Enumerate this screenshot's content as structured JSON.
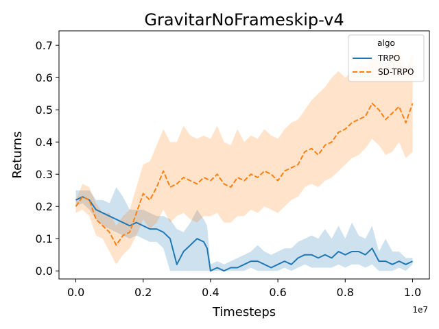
{
  "chart_data": {
    "type": "line",
    "title": "GravitarNoFrameskip-v4",
    "xlabel": "Timesteps",
    "ylabel": "Returns",
    "x_offset_label": "1e7",
    "xlim": [
      -0.05,
      1.05
    ],
    "ylim": [
      -0.025,
      0.745
    ],
    "x_ticks": [
      0.0,
      0.2,
      0.4,
      0.6,
      0.8,
      1.0
    ],
    "x_tick_labels": [
      "0.0",
      "0.2",
      "0.4",
      "0.6",
      "0.8",
      "1.0"
    ],
    "y_ticks": [
      0.0,
      0.1,
      0.2,
      0.3,
      0.4,
      0.5,
      0.6,
      0.7
    ],
    "y_tick_labels": [
      "0.0",
      "0.1",
      "0.2",
      "0.3",
      "0.4",
      "0.5",
      "0.6",
      "0.7"
    ],
    "grid": false,
    "legend": {
      "title": "algo",
      "placement": "top-right"
    },
    "series": [
      {
        "name": "TRPO",
        "color": "#1f77b4",
        "line_style": "solid",
        "band_opacity": 0.22,
        "x": [
          0.0,
          0.02,
          0.04,
          0.06,
          0.08,
          0.1,
          0.12,
          0.14,
          0.16,
          0.18,
          0.2,
          0.22,
          0.24,
          0.26,
          0.28,
          0.3,
          0.32,
          0.34,
          0.36,
          0.38,
          0.39,
          0.4,
          0.42,
          0.44,
          0.46,
          0.48,
          0.5,
          0.52,
          0.54,
          0.56,
          0.58,
          0.6,
          0.62,
          0.64,
          0.66,
          0.68,
          0.7,
          0.72,
          0.74,
          0.76,
          0.78,
          0.8,
          0.82,
          0.84,
          0.86,
          0.88,
          0.9,
          0.92,
          0.94,
          0.96,
          0.98,
          1.0
        ],
        "y": [
          0.22,
          0.23,
          0.22,
          0.19,
          0.18,
          0.17,
          0.16,
          0.15,
          0.14,
          0.15,
          0.14,
          0.13,
          0.13,
          0.12,
          0.1,
          0.02,
          0.06,
          0.08,
          0.1,
          0.09,
          0.07,
          0.0,
          0.01,
          0.0,
          0.01,
          0.01,
          0.02,
          0.03,
          0.03,
          0.02,
          0.01,
          0.02,
          0.03,
          0.02,
          0.04,
          0.05,
          0.05,
          0.04,
          0.05,
          0.04,
          0.06,
          0.05,
          0.06,
          0.06,
          0.05,
          0.07,
          0.03,
          0.03,
          0.02,
          0.03,
          0.02,
          0.03
        ],
        "lower": [
          0.2,
          0.21,
          0.19,
          0.16,
          0.14,
          0.13,
          0.12,
          0.11,
          0.1,
          0.11,
          0.1,
          0.09,
          0.09,
          0.07,
          0.0,
          0.0,
          0.0,
          0.0,
          0.0,
          0.0,
          0.0,
          0.0,
          0.0,
          0.0,
          0.0,
          0.0,
          0.0,
          0.01,
          0.0,
          0.0,
          0.0,
          0.0,
          0.01,
          0.0,
          0.01,
          0.02,
          0.01,
          0.01,
          0.01,
          0.01,
          0.02,
          0.01,
          0.02,
          0.02,
          0.01,
          0.02,
          0.0,
          0.0,
          0.0,
          0.01,
          0.0,
          0.02
        ],
        "upper": [
          0.25,
          0.25,
          0.25,
          0.22,
          0.22,
          0.21,
          0.26,
          0.23,
          0.19,
          0.19,
          0.19,
          0.18,
          0.17,
          0.17,
          0.16,
          0.13,
          0.12,
          0.15,
          0.19,
          0.16,
          0.14,
          0.02,
          0.03,
          0.02,
          0.03,
          0.04,
          0.05,
          0.06,
          0.08,
          0.06,
          0.05,
          0.06,
          0.07,
          0.07,
          0.09,
          0.1,
          0.11,
          0.1,
          0.13,
          0.1,
          0.14,
          0.1,
          0.15,
          0.11,
          0.1,
          0.14,
          0.06,
          0.1,
          0.06,
          0.06,
          0.04,
          0.04
        ]
      },
      {
        "name": "SD-TRPO",
        "color": "#ff7f0e",
        "line_style": "dashed",
        "band_opacity": 0.22,
        "x": [
          0.0,
          0.02,
          0.04,
          0.06,
          0.08,
          0.1,
          0.12,
          0.14,
          0.16,
          0.18,
          0.2,
          0.22,
          0.24,
          0.26,
          0.28,
          0.3,
          0.32,
          0.34,
          0.36,
          0.38,
          0.4,
          0.42,
          0.44,
          0.46,
          0.48,
          0.5,
          0.52,
          0.54,
          0.56,
          0.58,
          0.6,
          0.62,
          0.64,
          0.66,
          0.68,
          0.7,
          0.72,
          0.74,
          0.76,
          0.78,
          0.8,
          0.82,
          0.84,
          0.86,
          0.88,
          0.9,
          0.92,
          0.94,
          0.96,
          0.98,
          1.0
        ],
        "y": [
          0.2,
          0.23,
          0.22,
          0.16,
          0.14,
          0.12,
          0.08,
          0.11,
          0.12,
          0.18,
          0.24,
          0.22,
          0.26,
          0.31,
          0.26,
          0.27,
          0.29,
          0.28,
          0.27,
          0.29,
          0.28,
          0.3,
          0.27,
          0.26,
          0.29,
          0.28,
          0.3,
          0.29,
          0.31,
          0.3,
          0.28,
          0.31,
          0.32,
          0.33,
          0.37,
          0.38,
          0.36,
          0.39,
          0.4,
          0.43,
          0.44,
          0.46,
          0.47,
          0.48,
          0.52,
          0.5,
          0.47,
          0.49,
          0.51,
          0.46,
          0.52
        ],
        "lower": [
          0.18,
          0.19,
          0.17,
          0.11,
          0.1,
          0.06,
          0.02,
          0.05,
          0.07,
          0.11,
          0.16,
          0.13,
          0.15,
          0.19,
          0.15,
          0.17,
          0.18,
          0.16,
          0.15,
          0.17,
          0.17,
          0.18,
          0.15,
          0.15,
          0.17,
          0.17,
          0.19,
          0.18,
          0.2,
          0.19,
          0.18,
          0.2,
          0.22,
          0.23,
          0.26,
          0.27,
          0.26,
          0.28,
          0.29,
          0.31,
          0.33,
          0.35,
          0.36,
          0.38,
          0.41,
          0.39,
          0.36,
          0.37,
          0.4,
          0.35,
          0.37
        ],
        "upper": [
          0.22,
          0.27,
          0.26,
          0.21,
          0.18,
          0.18,
          0.14,
          0.17,
          0.19,
          0.26,
          0.33,
          0.34,
          0.39,
          0.44,
          0.4,
          0.4,
          0.45,
          0.42,
          0.41,
          0.42,
          0.41,
          0.45,
          0.4,
          0.39,
          0.44,
          0.4,
          0.42,
          0.41,
          0.44,
          0.42,
          0.41,
          0.44,
          0.46,
          0.47,
          0.5,
          0.53,
          0.55,
          0.57,
          0.6,
          0.62,
          0.6,
          0.62,
          0.64,
          0.63,
          0.66,
          0.65,
          0.63,
          0.67,
          0.69,
          0.63,
          0.67
        ]
      }
    ]
  }
}
